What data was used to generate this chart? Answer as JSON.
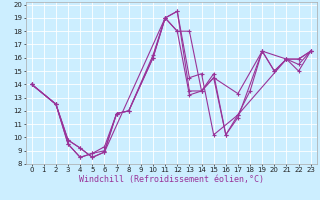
{
  "xlabel": "Windchill (Refroidissement éolien,°C)",
  "bg_color": "#cceeff",
  "grid_color": "#ffffff",
  "line_color": "#993399",
  "xlim": [
    -0.5,
    23.5
  ],
  "ylim": [
    8,
    20.2
  ],
  "xticks": [
    0,
    1,
    2,
    3,
    4,
    5,
    6,
    7,
    8,
    9,
    10,
    11,
    12,
    13,
    14,
    15,
    16,
    17,
    18,
    19,
    20,
    21,
    22,
    23
  ],
  "yticks": [
    8,
    9,
    10,
    11,
    12,
    13,
    14,
    15,
    16,
    17,
    18,
    19,
    20
  ],
  "actual_series": [
    {
      "x": [
        0,
        2,
        3,
        4,
        5,
        6,
        11,
        12,
        13,
        14,
        15,
        17,
        21,
        22,
        23
      ],
      "y": [
        14,
        12.5,
        9.8,
        9.2,
        8.5,
        8.9,
        19.0,
        19.5,
        14.5,
        14.8,
        10.2,
        11.7,
        15.9,
        15.0,
        16.5
      ]
    },
    {
      "x": [
        0,
        2,
        3,
        4,
        5,
        6,
        7,
        8,
        10,
        11,
        12,
        13,
        14,
        15,
        17,
        19,
        21,
        22,
        23
      ],
      "y": [
        14,
        12.5,
        9.5,
        8.5,
        8.8,
        9.3,
        11.8,
        12.0,
        16.2,
        19.0,
        18.0,
        13.2,
        13.5,
        14.5,
        13.3,
        16.5,
        15.9,
        15.9,
        16.5
      ]
    },
    {
      "x": [
        0,
        2,
        3,
        4,
        5,
        6,
        7,
        8,
        10,
        11,
        12,
        13,
        14,
        15,
        16,
        17,
        19,
        20,
        21,
        22,
        23
      ],
      "y": [
        14,
        12.5,
        9.5,
        8.5,
        8.8,
        9.0,
        11.8,
        12.0,
        16.0,
        19.0,
        18.0,
        18.0,
        13.5,
        14.5,
        10.2,
        11.5,
        16.5,
        15.0,
        15.9,
        15.9,
        16.5
      ]
    },
    {
      "x": [
        0,
        2,
        3,
        4,
        5,
        6,
        7,
        8,
        10,
        11,
        12,
        13,
        14,
        15,
        16,
        17,
        18,
        19,
        20,
        21,
        22,
        23
      ],
      "y": [
        14,
        12.5,
        9.8,
        9.2,
        8.5,
        8.9,
        11.8,
        12.0,
        16.0,
        19.0,
        19.5,
        13.5,
        13.5,
        14.8,
        10.2,
        11.7,
        13.5,
        16.5,
        15.0,
        15.9,
        15.5,
        16.5
      ]
    }
  ],
  "xlabel_color": "#993399",
  "xlabel_fontsize": 6,
  "tick_fontsize": 5,
  "marker": "+",
  "marker_size": 3,
  "linewidth": 0.8
}
